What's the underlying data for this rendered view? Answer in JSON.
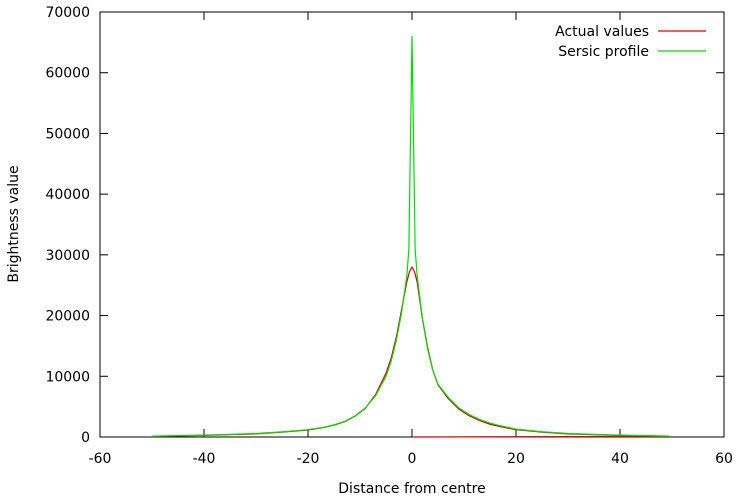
{
  "chart_data": {
    "type": "line",
    "title": "",
    "xlabel": "Distance from centre",
    "ylabel": "Brightness value",
    "xlim": [
      -60,
      60
    ],
    "ylim": [
      0,
      70000
    ],
    "xticks": [
      "-60",
      "-40",
      "-20",
      "0",
      "20",
      "40",
      "60"
    ],
    "yticks": [
      "0",
      "10000",
      "20000",
      "30000",
      "40000",
      "50000",
      "60000",
      "70000"
    ],
    "grid": false,
    "legend_position": "top-right",
    "series": [
      {
        "name": "Actual values",
        "color": "#e00000",
        "points": [
          [
            -50,
            100
          ],
          [
            -45,
            180
          ],
          [
            -40,
            270
          ],
          [
            -35,
            380
          ],
          [
            -30,
            520
          ],
          [
            -25,
            800
          ],
          [
            -20,
            1150
          ],
          [
            -17,
            1550
          ],
          [
            -15,
            1950
          ],
          [
            -13,
            2500
          ],
          [
            -11,
            3400
          ],
          [
            -9,
            4700
          ],
          [
            -7,
            7000
          ],
          [
            -5,
            10500
          ],
          [
            -4,
            13000
          ],
          [
            -3,
            16500
          ],
          [
            -2,
            21000
          ],
          [
            -1,
            25500
          ],
          [
            -0.5,
            27200
          ],
          [
            0,
            28000
          ],
          [
            0.5,
            27200
          ],
          [
            1,
            25500
          ],
          [
            2,
            19500
          ],
          [
            3,
            14800
          ],
          [
            4,
            11000
          ],
          [
            5,
            8600
          ],
          [
            7,
            6300
          ],
          [
            9,
            4600
          ],
          [
            11,
            3500
          ],
          [
            13,
            2700
          ],
          [
            15,
            2100
          ],
          [
            17,
            1700
          ],
          [
            20,
            1200
          ],
          [
            25,
            800
          ],
          [
            30,
            520
          ],
          [
            35,
            380
          ],
          [
            40,
            270
          ],
          [
            45,
            180
          ],
          [
            49.5,
            100
          ]
        ],
        "secondary_points": [
          [
            0,
            0
          ],
          [
            49.5,
            100
          ]
        ]
      },
      {
        "name": "Sersic profile",
        "color": "#00dd00",
        "points": [
          [
            -50,
            150
          ],
          [
            -45,
            220
          ],
          [
            -40,
            310
          ],
          [
            -35,
            430
          ],
          [
            -30,
            580
          ],
          [
            -25,
            850
          ],
          [
            -20,
            1200
          ],
          [
            -17,
            1600
          ],
          [
            -15,
            2000
          ],
          [
            -13,
            2550
          ],
          [
            -11,
            3450
          ],
          [
            -9,
            4750
          ],
          [
            -7,
            6800
          ],
          [
            -5,
            10000
          ],
          [
            -4,
            12500
          ],
          [
            -3,
            16000
          ],
          [
            -2,
            20500
          ],
          [
            -1,
            26500
          ],
          [
            -0.6,
            31000
          ],
          [
            0,
            66000
          ],
          [
            0.6,
            31000
          ],
          [
            1,
            26500
          ],
          [
            2,
            19500
          ],
          [
            3,
            14500
          ],
          [
            4,
            11000
          ],
          [
            5,
            8700
          ],
          [
            7,
            6500
          ],
          [
            9,
            4800
          ],
          [
            11,
            3700
          ],
          [
            13,
            2900
          ],
          [
            15,
            2300
          ],
          [
            17,
            1850
          ],
          [
            20,
            1300
          ],
          [
            25,
            870
          ],
          [
            30,
            590
          ],
          [
            35,
            430
          ],
          [
            40,
            310
          ],
          [
            45,
            220
          ],
          [
            49.5,
            150
          ]
        ]
      }
    ]
  }
}
